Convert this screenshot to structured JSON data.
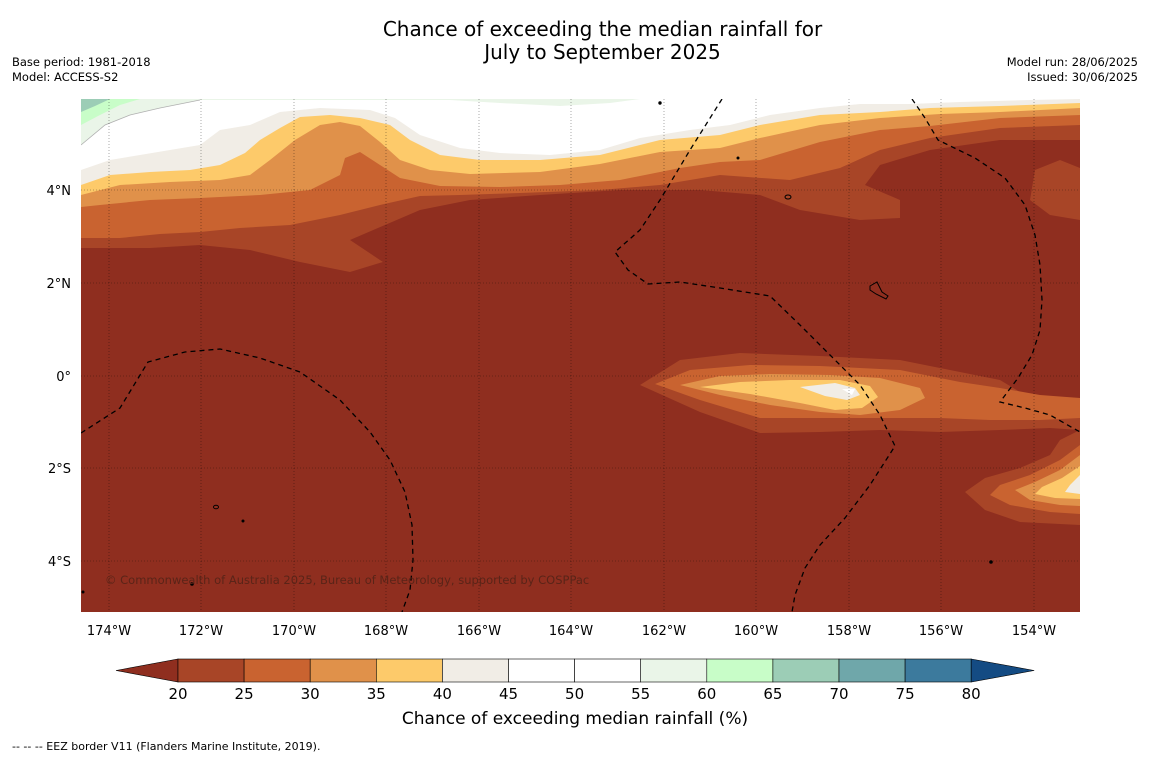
{
  "header": {
    "title_line1": "Chance of exceeding the median rainfall for",
    "title_line2": "July to September 2025",
    "base_period": "Base period: 1981-2018",
    "model": "Model: ACCESS-S2",
    "model_run": "Model run: 28/06/2025",
    "issued": "Issued: 30/06/2025"
  },
  "map": {
    "lon_labels": [
      "174°W",
      "172°W",
      "170°W",
      "168°W",
      "166°W",
      "164°W",
      "162°W",
      "160°W",
      "158°W",
      "156°W",
      "154°W"
    ],
    "lat_labels": [
      "4°N",
      "2°N",
      "0°",
      "2°S",
      "4°S"
    ],
    "copyright": "© Commonwealth of Australia 2025, Bureau of Meteorology, supported by COSPPac"
  },
  "colorbar": {
    "title": "Chance of exceeding median rainfall (%)",
    "ticks": [
      "20",
      "25",
      "30",
      "35",
      "40",
      "45",
      "50",
      "55",
      "60",
      "65",
      "70",
      "75",
      "80"
    ],
    "colors": [
      "#a84527",
      "#c96330",
      "#e0914a",
      "#fdca6a",
      "#f1ede6",
      "#ffffff",
      "#ffffff",
      "#eaf5e8",
      "#c8fdc8",
      "#9ccdb6",
      "#6fa7aa",
      "#3c7a9d"
    ],
    "low_color": "#8f2e1f",
    "high_color": "#144b83"
  },
  "footer": {
    "eez_note": "-- -- -- EEZ border V11 (Flanders Marine Institute, 2019)."
  }
}
